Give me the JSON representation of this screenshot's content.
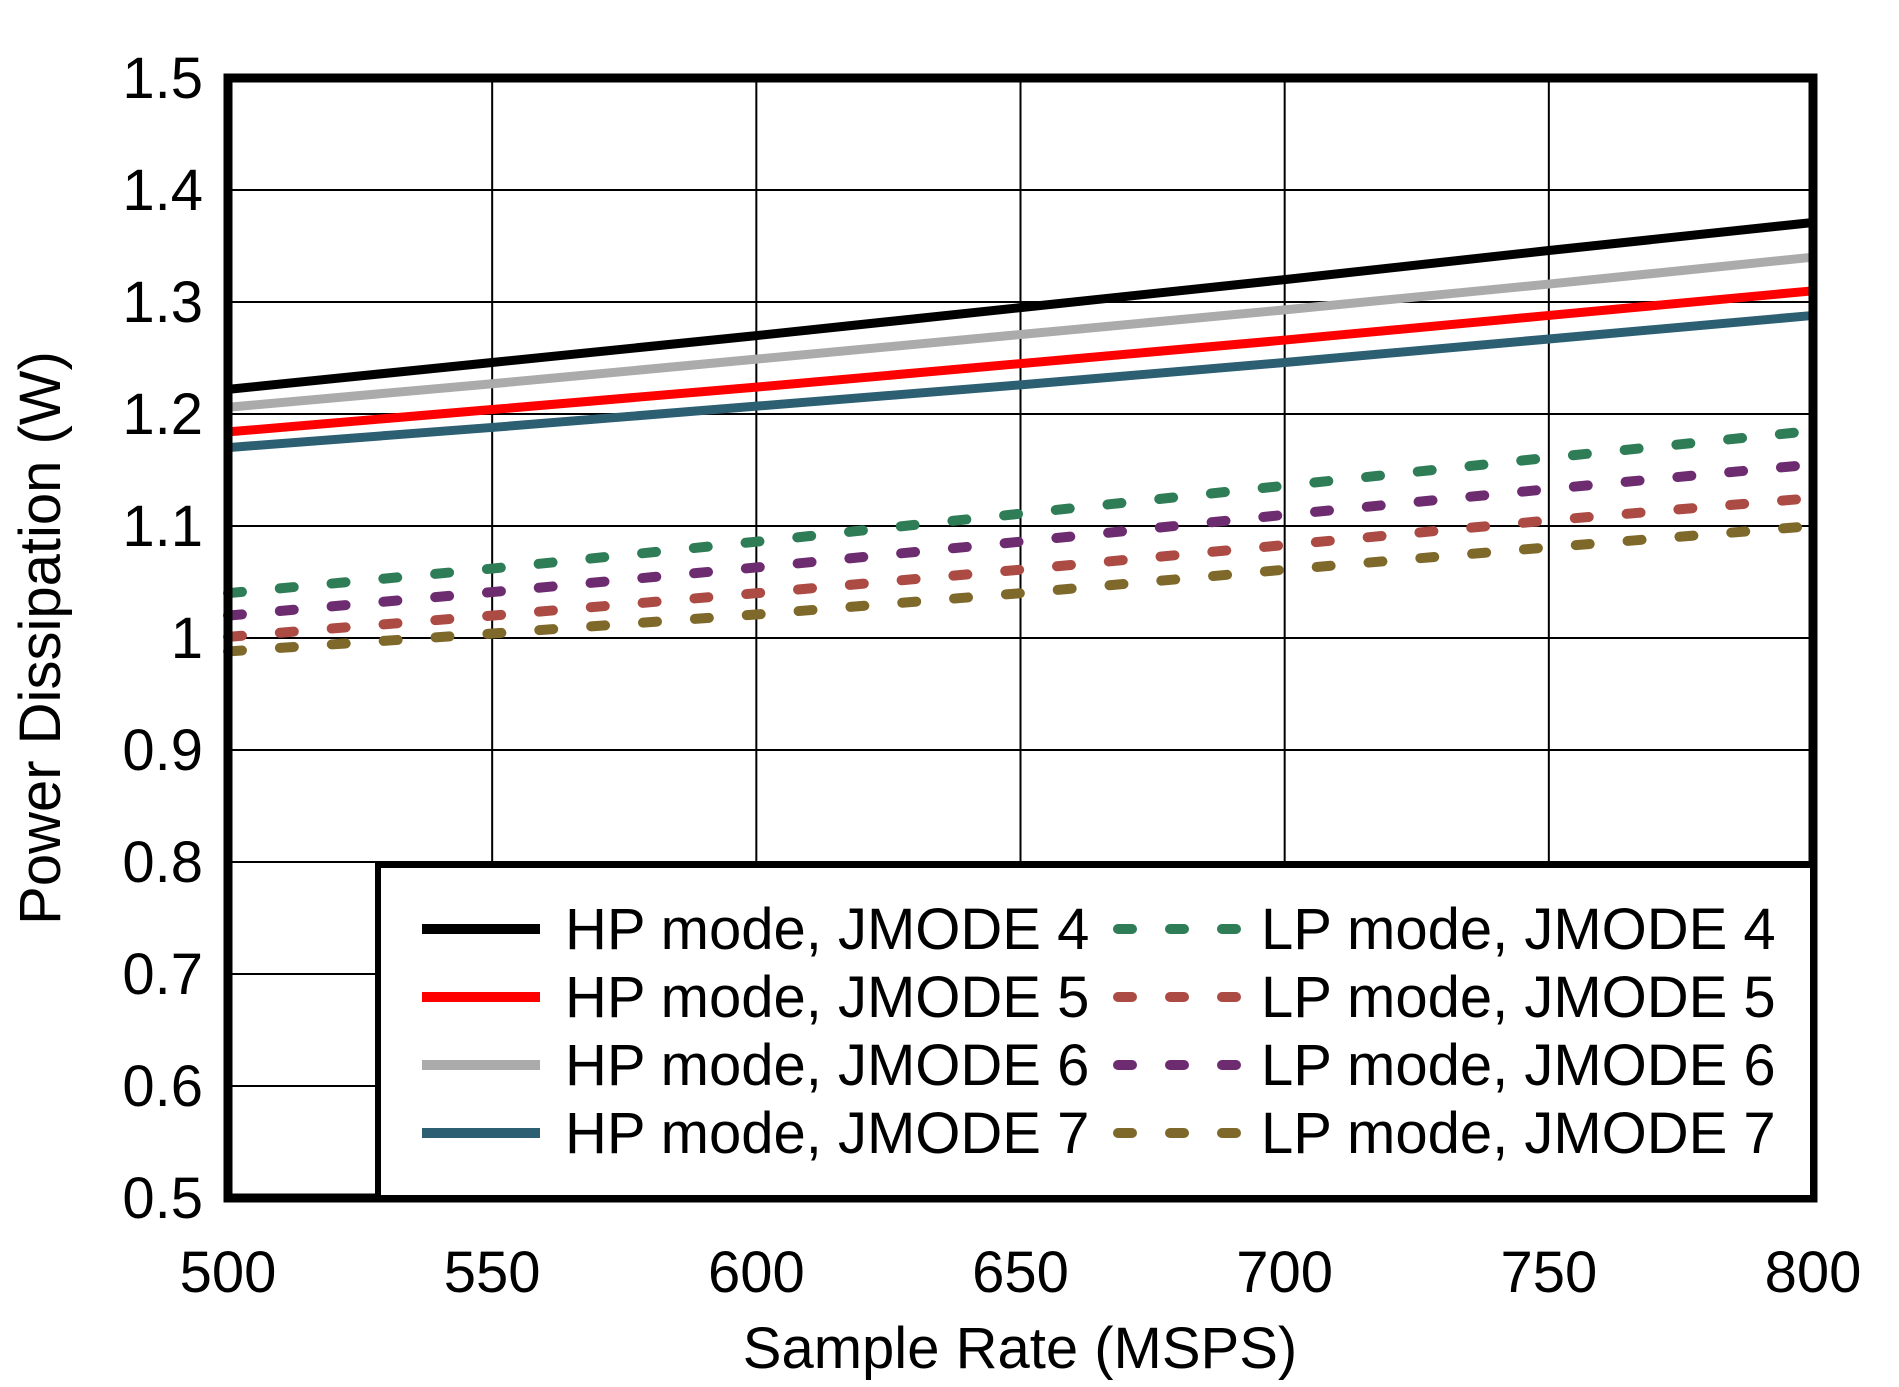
{
  "chart_data": {
    "type": "line",
    "title": "",
    "xlabel": "Sample Rate (MSPS)",
    "ylabel": "Power Dissipation (W)",
    "xlim": [
      500,
      800
    ],
    "ylim": [
      0.5,
      1.5
    ],
    "grid": true,
    "legend_position": "inside-bottom",
    "x_ticks": [
      500,
      550,
      600,
      650,
      700,
      750,
      800
    ],
    "x_tick_labels": [
      "500",
      "550",
      "600",
      "650",
      "700",
      "750",
      "800"
    ],
    "y_ticks": [
      0.5,
      0.6,
      0.7,
      0.8,
      0.9,
      1.0,
      1.1,
      1.2,
      1.3,
      1.4,
      1.5
    ],
    "y_tick_labels": [
      "0.5",
      "0.6",
      "0.7",
      "0.8",
      "0.9",
      "1",
      "1.1",
      "1.2",
      "1.3",
      "1.4",
      "1.5"
    ],
    "x": [
      500,
      550,
      600,
      650,
      700,
      750,
      800
    ],
    "series": [
      {
        "name": "HP mode, JMODE 4",
        "color": "#000000",
        "style": "solid",
        "values": [
          1.222,
          1.246,
          1.27,
          1.295,
          1.32,
          1.346,
          1.371
        ]
      },
      {
        "name": "HP mode, JMODE 5",
        "color": "#ff0000",
        "style": "solid",
        "values": [
          1.184,
          1.204,
          1.224,
          1.245,
          1.266,
          1.288,
          1.31
        ]
      },
      {
        "name": "HP mode, JMODE 6",
        "color": "#ababab",
        "style": "solid",
        "values": [
          1.206,
          1.227,
          1.249,
          1.271,
          1.293,
          1.316,
          1.34
        ]
      },
      {
        "name": "HP mode, JMODE 7",
        "color": "#2d5f73",
        "style": "solid",
        "values": [
          1.17,
          1.188,
          1.207,
          1.226,
          1.246,
          1.267,
          1.288
        ]
      },
      {
        "name": "LP mode, JMODE 4",
        "color": "#2e7d57",
        "style": "dashed",
        "values": [
          1.04,
          1.062,
          1.086,
          1.111,
          1.136,
          1.161,
          1.185
        ]
      },
      {
        "name": "LP mode, JMODE 5",
        "color": "#ac4a44",
        "style": "dashed",
        "values": [
          1.001,
          1.02,
          1.04,
          1.061,
          1.083,
          1.105,
          1.125
        ]
      },
      {
        "name": "LP mode, JMODE 6",
        "color": "#6e2c70",
        "style": "dashed",
        "values": [
          1.02,
          1.041,
          1.063,
          1.086,
          1.11,
          1.133,
          1.155
        ]
      },
      {
        "name": "LP mode, JMODE 7",
        "color": "#7e692b",
        "style": "dashed",
        "values": [
          0.988,
          1.004,
          1.021,
          1.04,
          1.061,
          1.081,
          1.1
        ]
      }
    ],
    "legend": {
      "columns": [
        [
          "HP mode, JMODE 4",
          "HP mode, JMODE 5",
          "HP mode, JMODE 6",
          "HP mode, JMODE 7"
        ],
        [
          "LP mode, JMODE 4",
          "LP mode, JMODE 5",
          "LP mode, JMODE 6",
          "LP mode, JMODE 7"
        ]
      ]
    }
  }
}
